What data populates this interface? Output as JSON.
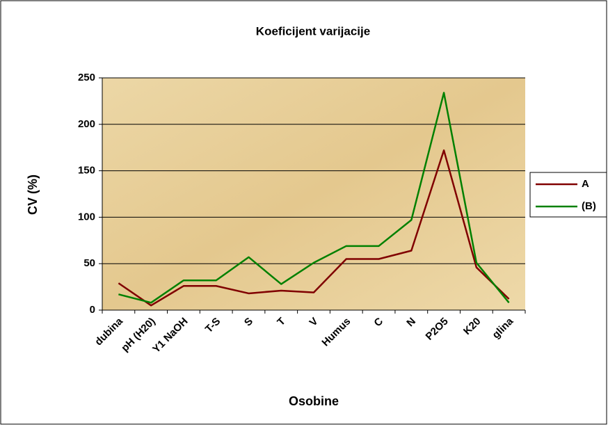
{
  "chart_data": {
    "type": "line",
    "title": "Koeficijent varijacije",
    "x_label": "Osobine",
    "y_label": "CV (%)",
    "categories": [
      "dubina",
      "pH (H20)",
      "Y1 NaOH",
      "T-S",
      "S",
      "T",
      "V",
      "Humus",
      "C",
      "N",
      "P2O5",
      "K20",
      "glina"
    ],
    "series": [
      {
        "name": "A",
        "color": "#800000",
        "values": [
          29,
          5,
          26,
          26,
          18,
          21,
          19,
          55,
          55,
          64,
          172,
          46,
          12
        ]
      },
      {
        "name": "(B)",
        "color": "#008000",
        "values": [
          17,
          8,
          32,
          32,
          57,
          28,
          51,
          69,
          69,
          97,
          234,
          51,
          8
        ]
      }
    ],
    "ylim": [
      0,
      250
    ],
    "yticks": [
      0,
      50,
      100,
      150,
      200,
      250
    ],
    "grid": true,
    "legend": "right"
  }
}
